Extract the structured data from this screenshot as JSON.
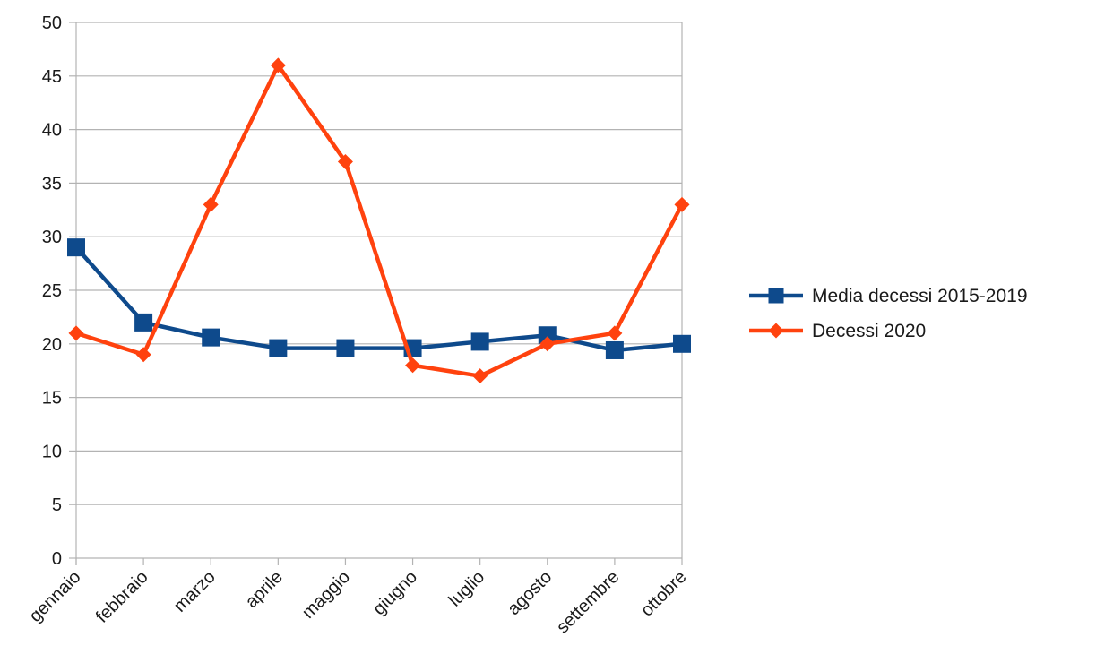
{
  "chart_data": {
    "type": "line",
    "title": "",
    "xlabel": "",
    "ylabel": "",
    "categories": [
      "gennaio",
      "febbraio",
      "marzo",
      "aprile",
      "maggio",
      "giugno",
      "luglio",
      "agosto",
      "settembre",
      "ottobre"
    ],
    "ylim": [
      0,
      50
    ],
    "yticks": [
      0,
      5,
      10,
      15,
      20,
      25,
      30,
      35,
      40,
      45,
      50
    ],
    "grid": true,
    "legend_position": "right",
    "series": [
      {
        "name": "Media decessi 2015-2019",
        "color": "#0e4a8c",
        "marker": "square",
        "values": [
          29,
          22,
          20.6,
          19.6,
          19.6,
          19.6,
          20.2,
          20.8,
          19.4,
          20
        ]
      },
      {
        "name": "Decessi 2020",
        "color": "#ff420e",
        "marker": "diamond",
        "values": [
          21,
          19,
          33,
          46,
          37,
          18,
          17,
          20,
          21,
          33
        ]
      }
    ]
  }
}
